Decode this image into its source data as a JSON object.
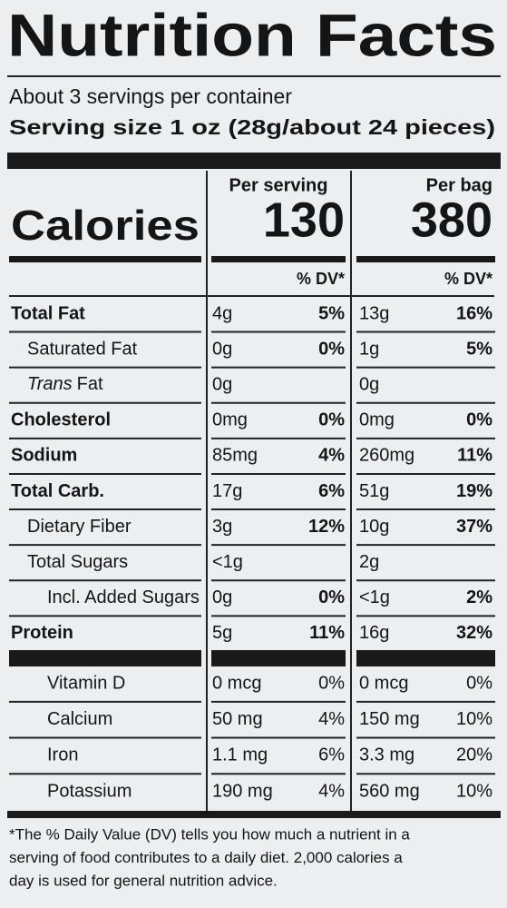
{
  "title": "Nutrition Facts",
  "servings": "About 3 servings per container",
  "serving_size": "Serving size 1 oz (28g/about 24 pieces)",
  "calories_label": "Calories",
  "columns": [
    {
      "header": "Per serving",
      "calories": "130",
      "dv_header": "% DV*"
    },
    {
      "header": "Per bag",
      "calories": "380",
      "dv_header": "% DV*"
    }
  ],
  "nutrients": [
    {
      "name": "Total Fat",
      "level": 0,
      "bold": true,
      "cells": [
        [
          "4g",
          "5%"
        ],
        [
          "13g",
          "16%"
        ]
      ]
    },
    {
      "name": "Saturated Fat",
      "level": 1,
      "bold": false,
      "cells": [
        [
          "0g",
          "0%"
        ],
        [
          "1g",
          "5%"
        ]
      ]
    },
    {
      "name_italic": "Trans",
      "name": "Fat",
      "level": 1,
      "bold": false,
      "cells": [
        [
          "0g"
        ],
        [
          "0g"
        ]
      ]
    },
    {
      "name": "Cholesterol",
      "level": 0,
      "bold": true,
      "cells": [
        [
          "0mg",
          "0%"
        ],
        [
          "0mg",
          "0%"
        ]
      ]
    },
    {
      "name": "Sodium",
      "level": 0,
      "bold": true,
      "cells": [
        [
          "85mg",
          "4%"
        ],
        [
          "260mg",
          "11%"
        ]
      ]
    },
    {
      "name": "Total Carb.",
      "level": 0,
      "bold": true,
      "cells": [
        [
          "17g",
          "6%"
        ],
        [
          "51g",
          "19%"
        ]
      ]
    },
    {
      "name": "Dietary Fiber",
      "level": 1,
      "bold": false,
      "cells": [
        [
          "3g",
          "12%"
        ],
        [
          "10g",
          "37%"
        ]
      ]
    },
    {
      "name": "Total Sugars",
      "level": 1,
      "bold": false,
      "cells": [
        [
          "<1g"
        ],
        [
          "2g"
        ]
      ]
    },
    {
      "name": "Incl. Added Sugars",
      "level": 2,
      "bold": false,
      "cells": [
        [
          "0g",
          "0%"
        ],
        [
          "<1g",
          "2%"
        ]
      ]
    },
    {
      "name": "Protein",
      "level": 0,
      "bold": true,
      "cells": [
        [
          "5g",
          "11%"
        ],
        [
          "16g",
          "32%"
        ]
      ]
    }
  ],
  "vitamins": [
    {
      "name": "Vitamin D",
      "level": 2,
      "bold": false,
      "cells": [
        [
          "0 mcg",
          "0%"
        ],
        [
          "0 mcg",
          "0%"
        ]
      ]
    },
    {
      "name": "Calcium",
      "level": 2,
      "bold": false,
      "cells": [
        [
          "50 mg",
          "4%"
        ],
        [
          "150 mg",
          "10%"
        ]
      ]
    },
    {
      "name": "Iron",
      "level": 2,
      "bold": false,
      "cells": [
        [
          "1.1 mg",
          "6%"
        ],
        [
          "3.3 mg",
          "20%"
        ]
      ]
    },
    {
      "name": "Potassium",
      "level": 2,
      "bold": false,
      "cells": [
        [
          "190 mg",
          "4%"
        ],
        [
          "560 mg",
          "10%"
        ]
      ]
    }
  ],
  "footnote": [
    "*The % Daily Value (DV) tells you how much a nutrient in a",
    "serving of food contributes to a daily diet. 2,000 calories a",
    "day is used for general nutrition advice."
  ]
}
